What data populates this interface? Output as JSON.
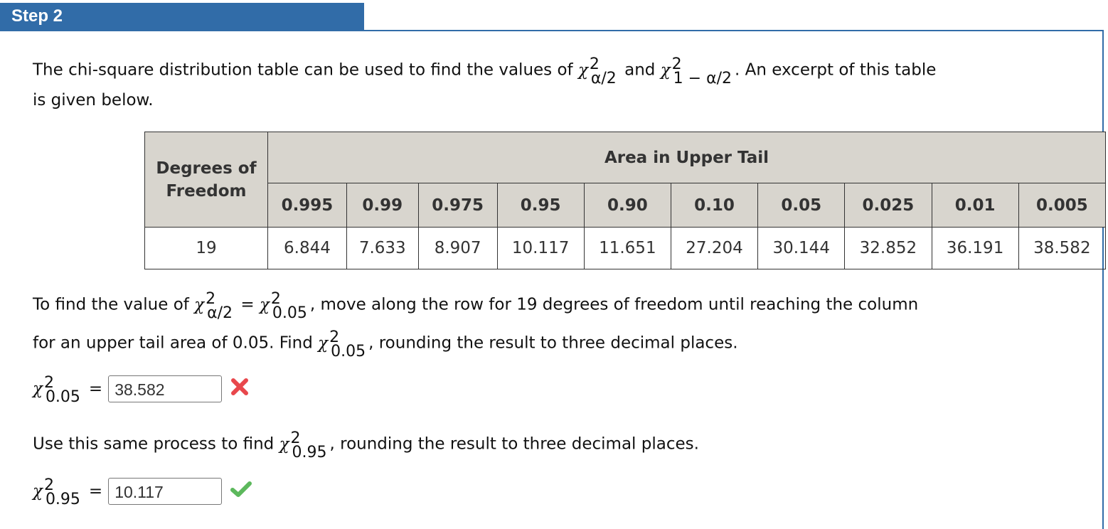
{
  "step": {
    "title": "Step 2"
  },
  "intro": {
    "text1": "The chi-square distribution table can be used to find the values of",
    "and": "and",
    "text2": ". An excerpt of this table",
    "line2": "is given below.",
    "sub1": "α/2",
    "sub2": "1 − α/2",
    "sup": "2",
    "chi": "χ"
  },
  "table": {
    "df_header": "Degrees of Freedom",
    "area_header": "Area in Upper Tail",
    "columns": [
      "0.995",
      "0.99",
      "0.975",
      "0.95",
      "0.90",
      "0.10",
      "0.05",
      "0.025",
      "0.01",
      "0.005"
    ],
    "rows": [
      {
        "df": "19",
        "values": [
          "6.844",
          "7.633",
          "8.907",
          "10.117",
          "11.651",
          "27.204",
          "30.144",
          "32.852",
          "36.191",
          "38.582"
        ]
      }
    ]
  },
  "para2": {
    "a": "To find the value of",
    "sub_a": "α/2",
    "eq": "=",
    "sub_b": "0.05",
    "b": ", move along the row for 19 degrees of freedom until reaching the column",
    "c": "for an upper tail area of 0.05. Find",
    "sub_c": "0.05",
    "d": ", rounding the result to three decimal places."
  },
  "answer1": {
    "sub": "0.05",
    "eq": "=",
    "value": "38.582",
    "status": "incorrect",
    "icon": "x-mark-icon",
    "color": "#e8474c"
  },
  "para3": {
    "a": "Use this same process to find",
    "sub": "0.95",
    "b": ", rounding the result to three decimal places."
  },
  "answer2": {
    "sub": "0.95",
    "eq": "=",
    "value": "10.117",
    "status": "correct",
    "icon": "check-mark-icon",
    "color": "#5cb85c"
  }
}
